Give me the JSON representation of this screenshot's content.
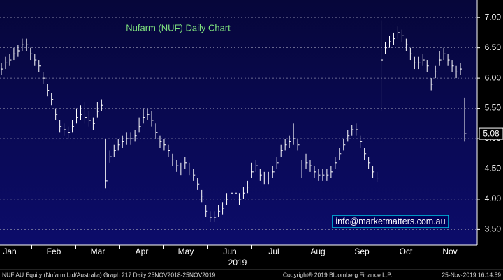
{
  "chart_data": {
    "type": "ohlc",
    "title": "Nufarm (NUF) Daily Chart",
    "annotation": "info@marketmatters.com.au",
    "year_label": "2019",
    "footer_left": "NUF AU Equity (Nufarm Ltd/Australia) Graph 217  Daily 25NOV2018-25NOV2019",
    "footer_center": "Copyright® 2019 Bloomberg Finance L.P.",
    "footer_right": "25-Nov-2019 16:14:59",
    "categories": [
      "Jan",
      "Feb",
      "Mar",
      "Apr",
      "May",
      "Jun",
      "Jul",
      "Aug",
      "Sep",
      "Oct",
      "Nov"
    ],
    "color": "#ffffff",
    "ylim": [
      3.24,
      7.29
    ],
    "yticks": [
      {
        "value": 3.5,
        "label": "3.50"
      },
      {
        "value": 4,
        "label": "4.00"
      },
      {
        "value": 4.5,
        "label": "4.50"
      },
      {
        "value": 5,
        "label": "5.00"
      },
      {
        "value": 5.5,
        "label": "5.50"
      },
      {
        "value": 6,
        "label": "6.00"
      },
      {
        "value": 6.5,
        "label": "6.50"
      },
      {
        "value": 7,
        "label": "7.00"
      }
    ],
    "grid": true,
    "high": [
      6.25,
      6.35,
      6.4,
      6.5,
      6.55,
      6.65,
      6.65,
      6.5,
      6.4,
      6.3,
      6.1,
      5.9,
      5.75,
      5.5,
      5.3,
      5.25,
      5.2,
      5.3,
      5.5,
      5.55,
      5.6,
      5.45,
      5.35,
      5.6,
      5.65,
      5.0,
      4.8,
      4.9,
      5.0,
      5.05,
      5.1,
      5.1,
      5.15,
      5.35,
      5.5,
      5.5,
      5.45,
      5.25,
      5.05,
      5.0,
      4.9,
      4.75,
      4.65,
      4.6,
      4.7,
      4.6,
      4.5,
      4.35,
      4.15,
      3.9,
      3.8,
      3.8,
      3.9,
      3.95,
      4.1,
      4.2,
      4.2,
      4.1,
      4.2,
      4.3,
      4.6,
      4.65,
      4.5,
      4.45,
      4.45,
      4.55,
      4.7,
      4.9,
      5.0,
      5.05,
      5.25,
      5.0,
      4.65,
      4.75,
      4.65,
      4.55,
      4.5,
      4.5,
      4.5,
      4.55,
      4.7,
      4.85,
      5.0,
      5.15,
      5.22,
      5.25,
      5.05,
      4.85,
      4.7,
      4.55,
      4.45,
      6.95,
      6.6,
      6.7,
      6.75,
      6.85,
      6.8,
      6.65,
      6.5,
      6.35,
      6.35,
      6.4,
      6.3,
      6.0,
      6.2,
      6.45,
      6.5,
      6.4,
      6.3,
      6.2,
      6.25,
      5.68
    ],
    "low": [
      6.05,
      6.15,
      6.2,
      6.3,
      6.35,
      6.45,
      6.45,
      6.3,
      6.2,
      6.1,
      5.9,
      5.7,
      5.55,
      5.3,
      5.1,
      5.05,
      5.0,
      5.1,
      5.25,
      5.3,
      5.25,
      5.2,
      5.15,
      5.35,
      5.45,
      4.18,
      4.6,
      4.7,
      4.8,
      4.85,
      4.9,
      4.9,
      4.95,
      5.1,
      5.25,
      5.3,
      5.2,
      5.0,
      4.85,
      4.8,
      4.7,
      4.55,
      4.45,
      4.4,
      4.5,
      4.4,
      4.3,
      4.15,
      3.95,
      3.7,
      3.62,
      3.62,
      3.7,
      3.75,
      3.9,
      4.0,
      3.95,
      3.9,
      4.0,
      4.1,
      4.35,
      4.45,
      4.3,
      4.25,
      4.25,
      4.35,
      4.5,
      4.7,
      4.8,
      4.85,
      4.9,
      4.8,
      4.35,
      4.5,
      4.45,
      4.35,
      4.3,
      4.3,
      4.3,
      4.35,
      4.5,
      4.65,
      4.8,
      4.95,
      5.05,
      5.05,
      4.85,
      4.65,
      4.5,
      4.35,
      4.28,
      5.45,
      6.4,
      6.5,
      6.55,
      6.65,
      6.6,
      6.45,
      6.3,
      6.15,
      6.15,
      6.2,
      6.1,
      5.8,
      6.0,
      6.2,
      6.3,
      6.2,
      6.1,
      6.0,
      6.05,
      4.95
    ],
    "close": [
      6.15,
      6.25,
      6.3,
      6.4,
      6.45,
      6.55,
      6.55,
      6.4,
      6.3,
      6.2,
      6.0,
      5.8,
      5.65,
      5.4,
      5.2,
      5.15,
      5.1,
      5.2,
      5.35,
      5.4,
      5.35,
      5.3,
      5.25,
      5.45,
      5.55,
      4.3,
      4.7,
      4.8,
      4.9,
      4.95,
      5.0,
      5.0,
      5.05,
      5.2,
      5.35,
      5.4,
      5.3,
      5.1,
      4.95,
      4.9,
      4.8,
      4.65,
      4.55,
      4.5,
      4.6,
      4.5,
      4.4,
      4.25,
      4.05,
      3.8,
      3.7,
      3.7,
      3.8,
      3.85,
      4.0,
      4.1,
      4.1,
      4.0,
      4.1,
      4.2,
      4.45,
      4.55,
      4.4,
      4.35,
      4.35,
      4.45,
      4.6,
      4.8,
      4.9,
      4.95,
      5.0,
      4.9,
      4.5,
      4.6,
      4.55,
      4.45,
      4.4,
      4.4,
      4.4,
      4.45,
      4.6,
      4.75,
      4.9,
      5.05,
      5.15,
      5.15,
      4.95,
      4.75,
      4.6,
      4.45,
      4.35,
      6.3,
      6.5,
      6.6,
      6.65,
      6.75,
      6.7,
      6.55,
      6.4,
      6.25,
      6.25,
      6.3,
      6.2,
      5.9,
      6.1,
      6.3,
      6.4,
      6.3,
      6.2,
      6.1,
      6.15,
      5.08
    ]
  }
}
